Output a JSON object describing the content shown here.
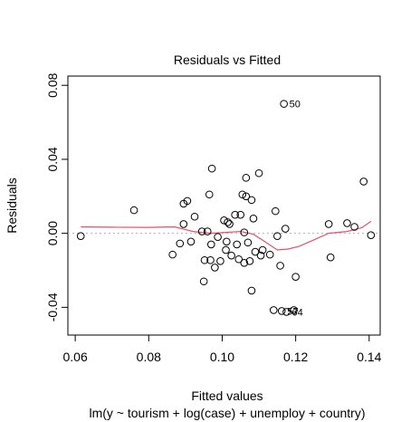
{
  "chart_data": {
    "type": "scatter",
    "title": "Residuals vs Fitted",
    "xlabel": "Fitted values",
    "subtitle": "lm(y ~ tourism + log(case) + unemploy + country)",
    "ylabel": "Residuals",
    "xlim": [
      0.058,
      0.143
    ],
    "ylim": [
      -0.055,
      0.085
    ],
    "x_ticks": [
      0.06,
      0.08,
      0.1,
      0.12,
      0.14
    ],
    "x_tick_labels": [
      "0.06",
      "0.08",
      "0.10",
      "0.12",
      "0.14"
    ],
    "y_ticks": [
      -0.04,
      0.0,
      0.04,
      0.08
    ],
    "y_tick_labels": [
      "-0.04",
      "0.00",
      "0.04",
      "0.08"
    ],
    "reference_line_y": 0,
    "grid": false,
    "points": [
      {
        "x": 0.0615,
        "y": -0.0015
      },
      {
        "x": 0.076,
        "y": 0.0125
      },
      {
        "x": 0.0865,
        "y": -0.0115
      },
      {
        "x": 0.0885,
        "y": -0.0055
      },
      {
        "x": 0.0895,
        "y": 0.005
      },
      {
        "x": 0.0895,
        "y": 0.016
      },
      {
        "x": 0.0905,
        "y": 0.0175
      },
      {
        "x": 0.0915,
        "y": -0.0045
      },
      {
        "x": 0.0925,
        "y": 0.009
      },
      {
        "x": 0.0945,
        "y": 0.001
      },
      {
        "x": 0.095,
        "y": -0.026
      },
      {
        "x": 0.0952,
        "y": -0.0145
      },
      {
        "x": 0.096,
        "y": 0.001
      },
      {
        "x": 0.0965,
        "y": 0.021
      },
      {
        "x": 0.0968,
        "y": -0.0145
      },
      {
        "x": 0.097,
        "y": -0.006
      },
      {
        "x": 0.0972,
        "y": 0.035
      },
      {
        "x": 0.098,
        "y": -0.0185
      },
      {
        "x": 0.0988,
        "y": -0.002
      },
      {
        "x": 0.0995,
        "y": -0.015
      },
      {
        "x": 0.1005,
        "y": 0.007
      },
      {
        "x": 0.101,
        "y": -0.009
      },
      {
        "x": 0.1012,
        "y": -0.0045
      },
      {
        "x": 0.1015,
        "y": 0.006
      },
      {
        "x": 0.102,
        "y": 0.005
      },
      {
        "x": 0.1025,
        "y": -0.012
      },
      {
        "x": 0.1035,
        "y": 0.01
      },
      {
        "x": 0.104,
        "y": -0.006
      },
      {
        "x": 0.1045,
        "y": -0.014
      },
      {
        "x": 0.105,
        "y": 0.01
      },
      {
        "x": 0.1055,
        "y": 0.021
      },
      {
        "x": 0.106,
        "y": 0.0005
      },
      {
        "x": 0.106,
        "y": -0.016
      },
      {
        "x": 0.1065,
        "y": 0.03
      },
      {
        "x": 0.1065,
        "y": 0.02
      },
      {
        "x": 0.107,
        "y": -0.005
      },
      {
        "x": 0.1075,
        "y": -0.015
      },
      {
        "x": 0.108,
        "y": 0.018
      },
      {
        "x": 0.108,
        "y": -0.031
      },
      {
        "x": 0.1085,
        "y": 0.008
      },
      {
        "x": 0.109,
        "y": -0.01
      },
      {
        "x": 0.11,
        "y": 0.0325
      },
      {
        "x": 0.1105,
        "y": -0.012
      },
      {
        "x": 0.111,
        "y": -0.009
      },
      {
        "x": 0.113,
        "y": -0.0115
      },
      {
        "x": 0.114,
        "y": -0.0415
      },
      {
        "x": 0.1145,
        "y": 0.012
      },
      {
        "x": 0.115,
        "y": -0.0015
      },
      {
        "x": 0.1158,
        "y": -0.0175
      },
      {
        "x": 0.1162,
        "y": -0.042,
        "label": "57"
      },
      {
        "x": 0.1168,
        "y": 0.07,
        "label": "50"
      },
      {
        "x": 0.1172,
        "y": 0.0025
      },
      {
        "x": 0.1175,
        "y": -0.0425,
        "label": "64"
      },
      {
        "x": 0.1195,
        "y": -0.0415
      },
      {
        "x": 0.12,
        "y": -0.0235
      },
      {
        "x": 0.129,
        "y": 0.005
      },
      {
        "x": 0.1295,
        "y": -0.013
      },
      {
        "x": 0.134,
        "y": 0.0055
      },
      {
        "x": 0.136,
        "y": 0.0035
      },
      {
        "x": 0.1385,
        "y": 0.028
      },
      {
        "x": 0.1405,
        "y": -0.001
      }
    ],
    "smooth_line": {
      "color": "#df536b",
      "points": [
        [
          0.0615,
          0.0035
        ],
        [
          0.07,
          0.0033
        ],
        [
          0.08,
          0.0032
        ],
        [
          0.087,
          0.0035
        ],
        [
          0.092,
          0.001
        ],
        [
          0.097,
          0.0
        ],
        [
          0.101,
          0.0005
        ],
        [
          0.105,
          0.001
        ],
        [
          0.1085,
          -0.0005
        ],
        [
          0.112,
          -0.005
        ],
        [
          0.115,
          -0.009
        ],
        [
          0.118,
          -0.0085
        ],
        [
          0.121,
          -0.007
        ],
        [
          0.125,
          -0.0035
        ],
        [
          0.129,
          0.0
        ],
        [
          0.134,
          0.001
        ],
        [
          0.138,
          0.003
        ],
        [
          0.1405,
          0.0065
        ]
      ]
    }
  }
}
